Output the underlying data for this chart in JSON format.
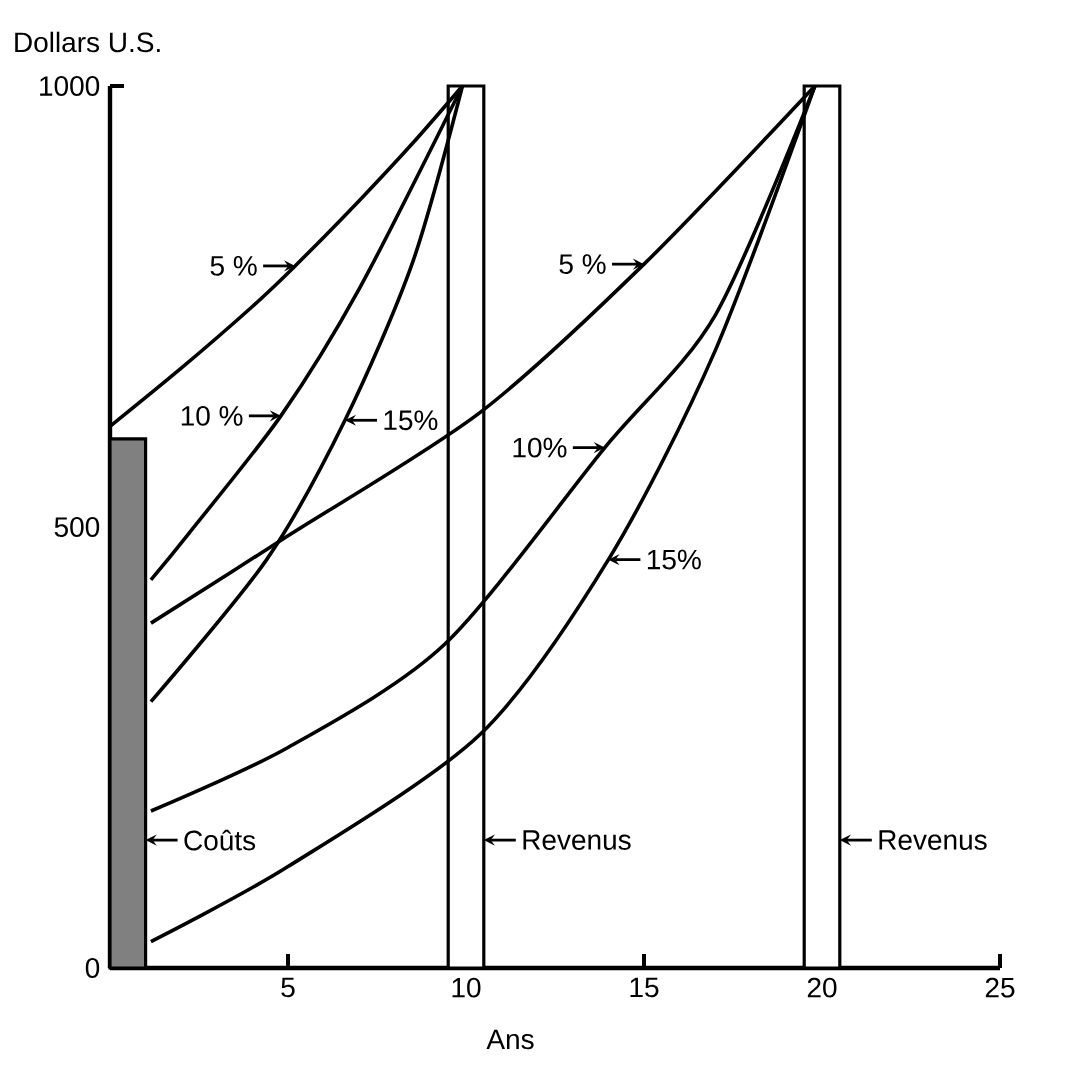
{
  "chart_data": {
    "type": "line",
    "xlabel": "Ans",
    "ylabel": "Dollars U.S.",
    "xlim": [
      0,
      25
    ],
    "ylim": [
      0,
      1000
    ],
    "xticks": [
      5,
      10,
      15,
      20,
      25
    ],
    "yticks": [
      0,
      500,
      1000
    ],
    "series": [
      {
        "type": "bar",
        "color": "#808080",
        "x": [
          0.5
        ],
        "values": [
          600
        ]
      },
      {
        "type": "bar",
        "color": "#ffffff",
        "x": [
          10,
          20
        ],
        "values": [
          1000,
          1000
        ]
      },
      {
        "color": "#000000",
        "x": [
          0,
          2,
          4,
          5.2,
          7,
          8.5,
          9.9
        ],
        "values": [
          614,
          680,
          750,
          796,
          870,
          935,
          1000
        ]
      },
      {
        "color": "#000000",
        "x": [
          1.15,
          2.2,
          4.8,
          7,
          9.9
        ],
        "values": [
          440,
          492,
          626,
          770,
          1000
        ]
      },
      {
        "color": "#000000",
        "x": [
          1.15,
          4.4,
          6.6,
          8.5,
          9.9
        ],
        "values": [
          302,
          463,
          621,
          800,
          1000
        ]
      },
      {
        "color": "#000000",
        "x": [
          1.15,
          5,
          10.4,
          15,
          19.8
        ],
        "values": [
          391,
          490,
          630,
          798,
          1000
        ]
      },
      {
        "color": "#000000",
        "x": [
          1.15,
          5,
          9.4,
          13.9,
          17,
          19.8
        ],
        "values": [
          178,
          250,
          367,
          590,
          740,
          1000
        ]
      },
      {
        "color": "#000000",
        "x": [
          1.15,
          5,
          10.4,
          14,
          17,
          19.8
        ],
        "values": [
          30,
          115,
          265,
          463,
          700,
          1000
        ]
      }
    ],
    "annotations": [
      {
        "text": "Coûts",
        "x": 1,
        "y": 145
      },
      {
        "text": "Revenus",
        "x": 10.5,
        "y": 145
      },
      {
        "text": "Revenus",
        "x": 20.5,
        "y": 145
      },
      {
        "text": "5 %",
        "x": 5.2,
        "y": 796
      },
      {
        "text": "10 %",
        "x": 4.8,
        "y": 626
      },
      {
        "text": "15%",
        "x": 6.6,
        "y": 621
      },
      {
        "text": "5 %",
        "x": 15,
        "y": 798
      },
      {
        "text": "10%",
        "x": 13.9,
        "y": 590
      },
      {
        "text": "15%",
        "x": 14,
        "y": 463
      }
    ]
  }
}
